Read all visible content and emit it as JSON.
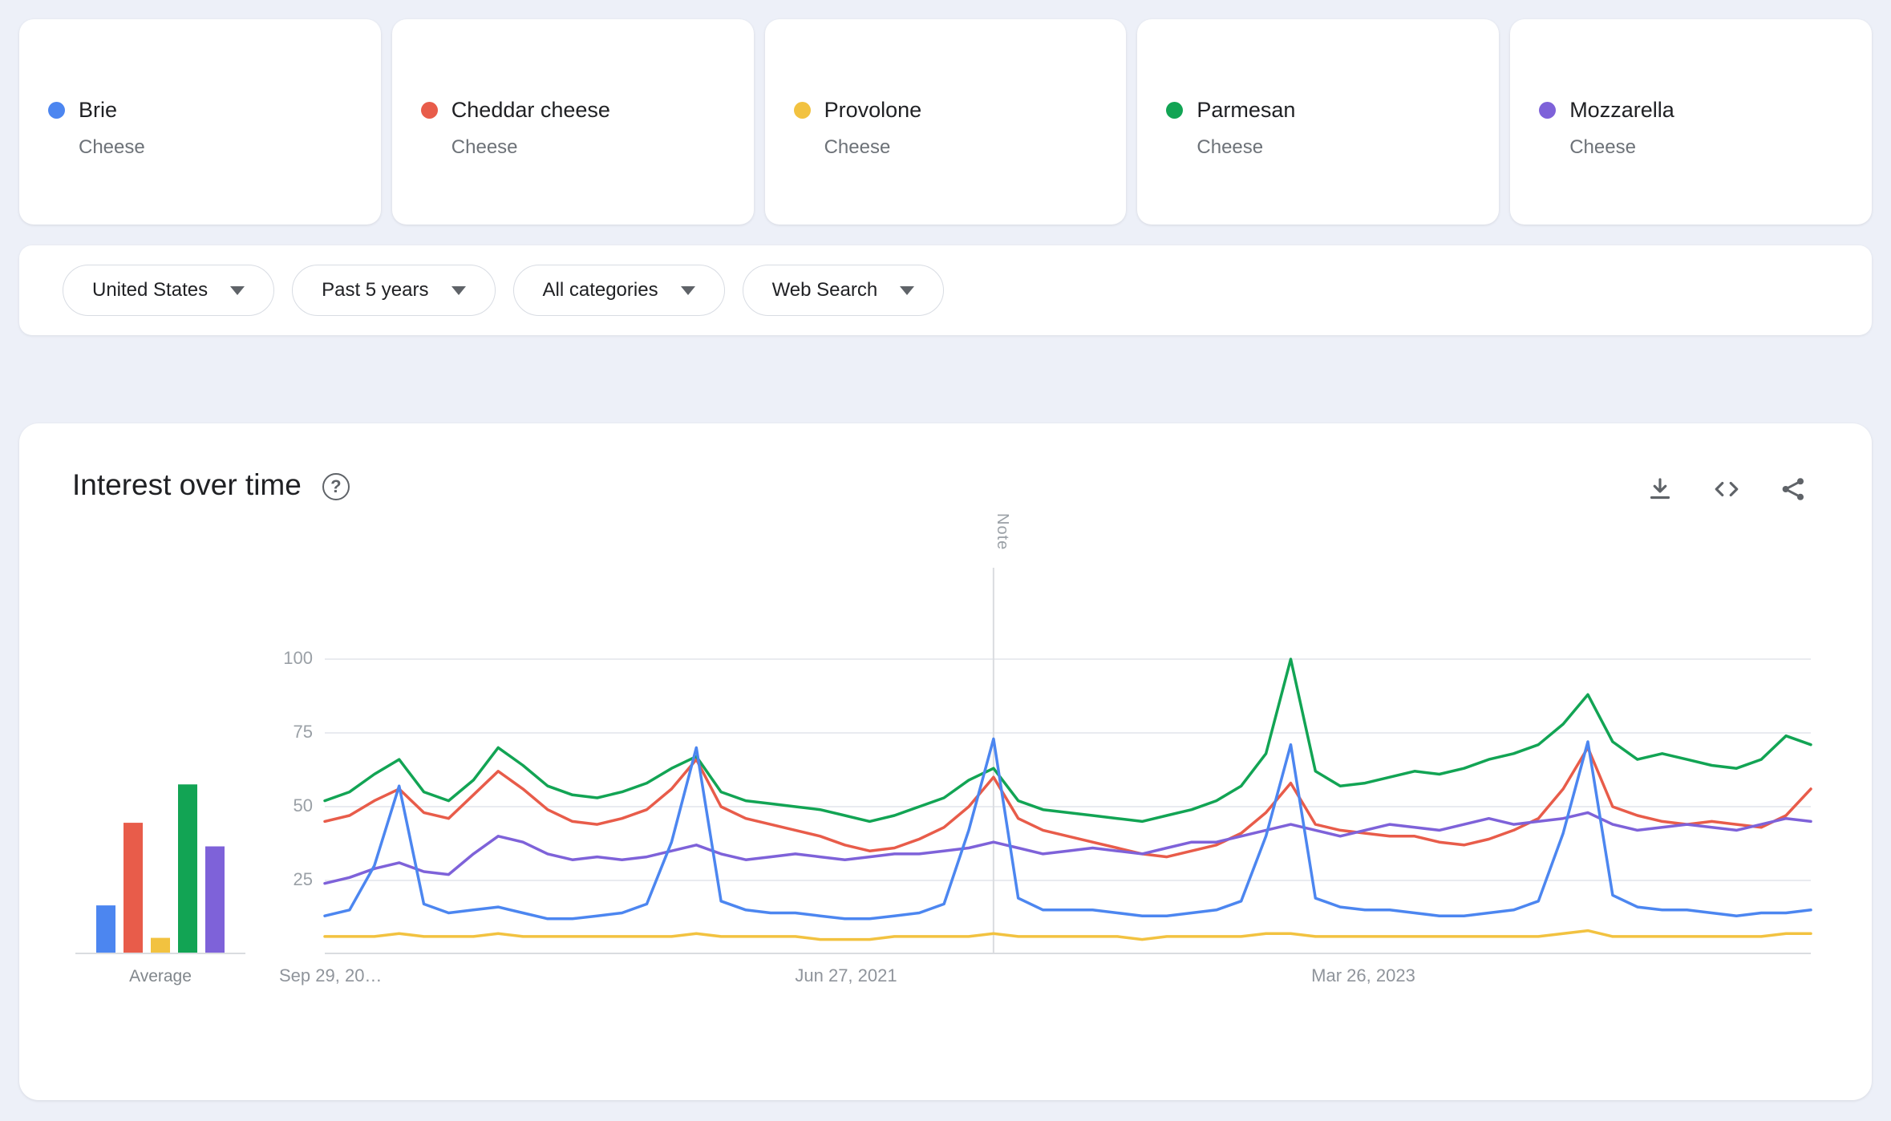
{
  "terms": [
    {
      "label": "Brie",
      "subtitle": "Cheese",
      "color": "#4c86f0"
    },
    {
      "label": "Cheddar cheese",
      "subtitle": "Cheese",
      "color": "#e85c4a"
    },
    {
      "label": "Provolone",
      "subtitle": "Cheese",
      "color": "#f2c240"
    },
    {
      "label": "Parmesan",
      "subtitle": "Cheese",
      "color": "#12a454"
    },
    {
      "label": "Mozzarella",
      "subtitle": "Cheese",
      "color": "#7e62d9"
    }
  ],
  "filters": {
    "region": "United States",
    "time_range": "Past 5 years",
    "category": "All categories",
    "search_type": "Web Search"
  },
  "section": {
    "title": "Interest over time"
  },
  "icons": {
    "help_glyph": "?",
    "help": "question-mark-circle",
    "dropdown_caret": "solid triangle down",
    "download": "download-arrow-with-tray",
    "embed": "angle-brackets",
    "share": "three-connected-dots"
  },
  "chart_data": {
    "type": "line",
    "title": "Interest over time",
    "ylim": [
      0,
      100
    ],
    "ytick_values": [
      25,
      50,
      75,
      100
    ],
    "xticks": [
      "Sep 29, 20…",
      "Jun 27, 2021",
      "Mar 26, 2023"
    ],
    "note_label": "Note",
    "note_fraction": 0.45,
    "grid": true,
    "legend_position": "top term cards",
    "average_label": "Average",
    "averages": [
      16,
      44,
      5,
      57,
      36
    ],
    "series": [
      {
        "name": "Brie",
        "color": "#4c86f0",
        "values": [
          13,
          15,
          30,
          57,
          17,
          14,
          15,
          16,
          14,
          12,
          12,
          13,
          14,
          17,
          38,
          70,
          18,
          15,
          14,
          14,
          13,
          12,
          12,
          13,
          14,
          17,
          42,
          73,
          19,
          15,
          15,
          15,
          14,
          13,
          13,
          14,
          15,
          18,
          40,
          71,
          19,
          16,
          15,
          15,
          14,
          13,
          13,
          14,
          15,
          18,
          41,
          72,
          20,
          16,
          15,
          15,
          14,
          13,
          14,
          14,
          15
        ]
      },
      {
        "name": "Cheddar cheese",
        "color": "#e85c4a",
        "values": [
          45,
          47,
          52,
          56,
          48,
          46,
          54,
          62,
          56,
          49,
          45,
          44,
          46,
          49,
          56,
          66,
          50,
          46,
          44,
          42,
          40,
          37,
          35,
          36,
          39,
          43,
          50,
          60,
          46,
          42,
          40,
          38,
          36,
          34,
          33,
          35,
          37,
          41,
          48,
          58,
          44,
          42,
          41,
          40,
          40,
          38,
          37,
          39,
          42,
          46,
          56,
          70,
          50,
          47,
          45,
          44,
          45,
          44,
          43,
          47,
          56
        ]
      },
      {
        "name": "Provolone",
        "color": "#f2c240",
        "values": [
          6,
          6,
          6,
          7,
          6,
          6,
          6,
          7,
          6,
          6,
          6,
          6,
          6,
          6,
          6,
          7,
          6,
          6,
          6,
          6,
          5,
          5,
          5,
          6,
          6,
          6,
          6,
          7,
          6,
          6,
          6,
          6,
          6,
          5,
          6,
          6,
          6,
          6,
          7,
          7,
          6,
          6,
          6,
          6,
          6,
          6,
          6,
          6,
          6,
          6,
          7,
          8,
          6,
          6,
          6,
          6,
          6,
          6,
          6,
          7,
          7
        ]
      },
      {
        "name": "Parmesan",
        "color": "#12a454",
        "values": [
          52,
          55,
          61,
          66,
          55,
          52,
          59,
          70,
          64,
          57,
          54,
          53,
          55,
          58,
          63,
          67,
          55,
          52,
          51,
          50,
          49,
          47,
          45,
          47,
          50,
          53,
          59,
          63,
          52,
          49,
          48,
          47,
          46,
          45,
          47,
          49,
          52,
          57,
          68,
          100,
          62,
          57,
          58,
          60,
          62,
          61,
          63,
          66,
          68,
          71,
          78,
          88,
          72,
          66,
          68,
          66,
          64,
          63,
          66,
          74,
          71
        ]
      },
      {
        "name": "Mozzarella",
        "color": "#7e62d9",
        "values": [
          24,
          26,
          29,
          31,
          28,
          27,
          34,
          40,
          38,
          34,
          32,
          33,
          32,
          33,
          35,
          37,
          34,
          32,
          33,
          34,
          33,
          32,
          33,
          34,
          34,
          35,
          36,
          38,
          36,
          34,
          35,
          36,
          35,
          34,
          36,
          38,
          38,
          40,
          42,
          44,
          42,
          40,
          42,
          44,
          43,
          42,
          44,
          46,
          44,
          45,
          46,
          48,
          44,
          42,
          43,
          44,
          43,
          42,
          44,
          46,
          45
        ]
      }
    ]
  }
}
